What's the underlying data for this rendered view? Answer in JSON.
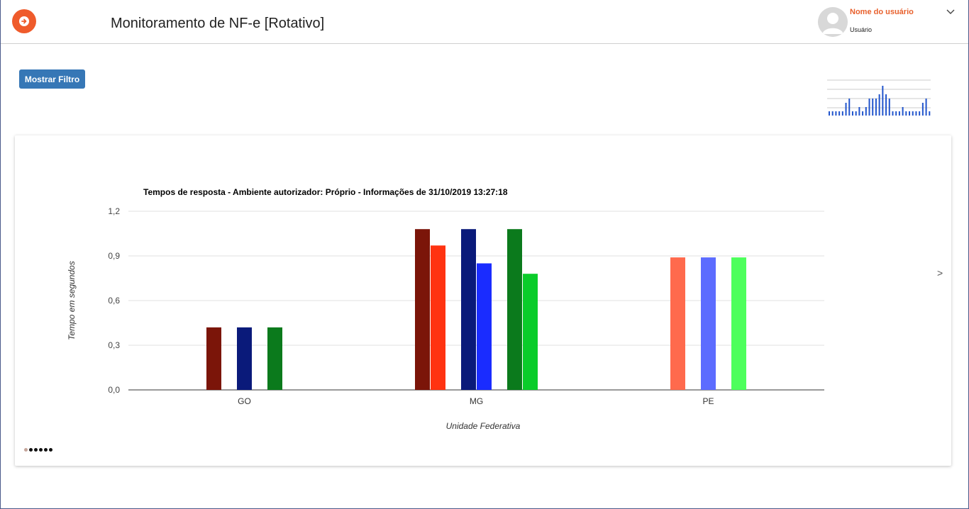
{
  "header": {
    "title": "Monitoramento de NF-e [Rotativo]",
    "menu_icon": "arrow-right-circle-icon",
    "accent_color": "#ef5b2b"
  },
  "user": {
    "name": "Nome do usuário",
    "role": "Usuário",
    "name_color": "#e8602c"
  },
  "filter_button": {
    "label": "Mostrar Filtro",
    "color": "#3677b6"
  },
  "sparkline": {
    "values": [
      1,
      1,
      1,
      1,
      1,
      3,
      4,
      1,
      1,
      2,
      1,
      2,
      4,
      4,
      4,
      5,
      7,
      5,
      4,
      1,
      1,
      1,
      2,
      1,
      1,
      1,
      1,
      1,
      3,
      4,
      1
    ],
    "color": "#2255cc"
  },
  "carousel": {
    "next_label": ">",
    "slide_count": 6,
    "active_index": 0
  },
  "chart_data": {
    "type": "bar",
    "title": "Tempos de resposta - Ambiente autorizador: Próprio - Informações de 31/10/2019 13:27:18",
    "xlabel": "Unidade Federativa",
    "ylabel": "Tempo em segundos",
    "ylim": [
      0,
      1.2
    ],
    "yticks": [
      "0,0",
      "0,3",
      "0,6",
      "0,9",
      "1,2"
    ],
    "grid": true,
    "categories": [
      "GO",
      "MG",
      "PE"
    ],
    "series": [
      {
        "color": "#7b1509",
        "values": [
          0.42,
          1.08,
          null
        ]
      },
      {
        "color": "#ff3311",
        "values": [
          null,
          0.97,
          null
        ]
      },
      {
        "color": "#ff6a4d",
        "values": [
          null,
          null,
          0.89
        ]
      },
      {
        "color": "#0a1a7a",
        "values": [
          0.42,
          1.08,
          null
        ]
      },
      {
        "color": "#1a2cff",
        "values": [
          null,
          0.85,
          null
        ]
      },
      {
        "color": "#5c6cff",
        "values": [
          null,
          null,
          0.89
        ]
      },
      {
        "color": "#0b7a1c",
        "values": [
          0.42,
          1.08,
          null
        ]
      },
      {
        "color": "#0acc2a",
        "values": [
          null,
          0.78,
          null
        ]
      },
      {
        "color": "#4dff5c",
        "values": [
          null,
          null,
          0.89
        ]
      }
    ]
  }
}
